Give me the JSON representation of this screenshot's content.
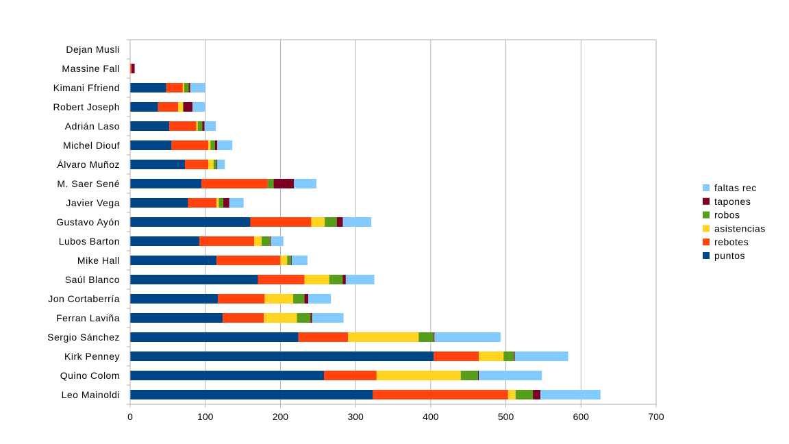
{
  "chart_data": {
    "type": "bar",
    "orientation": "horizontal",
    "stacked": true,
    "categories": [
      "Dejan Musli",
      "Massine Fall",
      "Kimani Ffriend",
      "Robert Joseph",
      "Adrián Laso",
      "Michel Diouf",
      "Álvaro Muñoz",
      "M. Saer Sené",
      "Javier Vega",
      "Gustavo Ayón",
      "Lubos Barton",
      "Mike Hall",
      "Saúl Blanco",
      "Jon Cortaberría",
      "Ferran Laviña",
      "Sergio Sánchez",
      "Kirk Penney",
      "Quino Colom",
      "Leo Mainoldi"
    ],
    "series": [
      {
        "name": "puntos",
        "color": "#004586",
        "values": [
          0,
          0,
          48,
          37,
          52,
          55,
          73,
          95,
          77,
          160,
          92,
          115,
          170,
          117,
          123,
          224,
          404,
          258,
          323
        ]
      },
      {
        "name": "rebotes",
        "color": "#ff420e",
        "values": [
          0,
          2,
          22,
          27,
          36,
          49,
          31,
          88,
          38,
          81,
          73,
          85,
          62,
          62,
          55,
          66,
          60,
          70,
          180
        ]
      },
      {
        "name": "asistencias",
        "color": "#ffd320",
        "values": [
          0,
          0,
          2,
          6,
          2,
          3,
          7,
          0,
          3,
          18,
          10,
          9,
          33,
          38,
          44,
          94,
          33,
          112,
          10
        ]
      },
      {
        "name": "robos",
        "color": "#579d1c",
        "values": [
          0,
          0,
          6,
          1,
          6,
          6,
          4,
          8,
          6,
          16,
          11,
          5,
          18,
          15,
          18,
          20,
          14,
          23,
          23
        ]
      },
      {
        "name": "tapones",
        "color": "#7e0021",
        "values": [
          0,
          4,
          2,
          12,
          3,
          3,
          1,
          27,
          8,
          8,
          1,
          1,
          4,
          5,
          2,
          1,
          1,
          1,
          10
        ]
      },
      {
        "name": "faltas rec",
        "color": "#83caff",
        "values": [
          0,
          0,
          20,
          17,
          15,
          20,
          10,
          30,
          19,
          38,
          17,
          21,
          38,
          30,
          42,
          88,
          71,
          84,
          80
        ]
      }
    ],
    "xlim": [
      0,
      700
    ],
    "xticks": [
      0,
      100,
      200,
      300,
      400,
      500,
      600,
      700
    ],
    "grid": "vertical",
    "legend_position": "right"
  }
}
